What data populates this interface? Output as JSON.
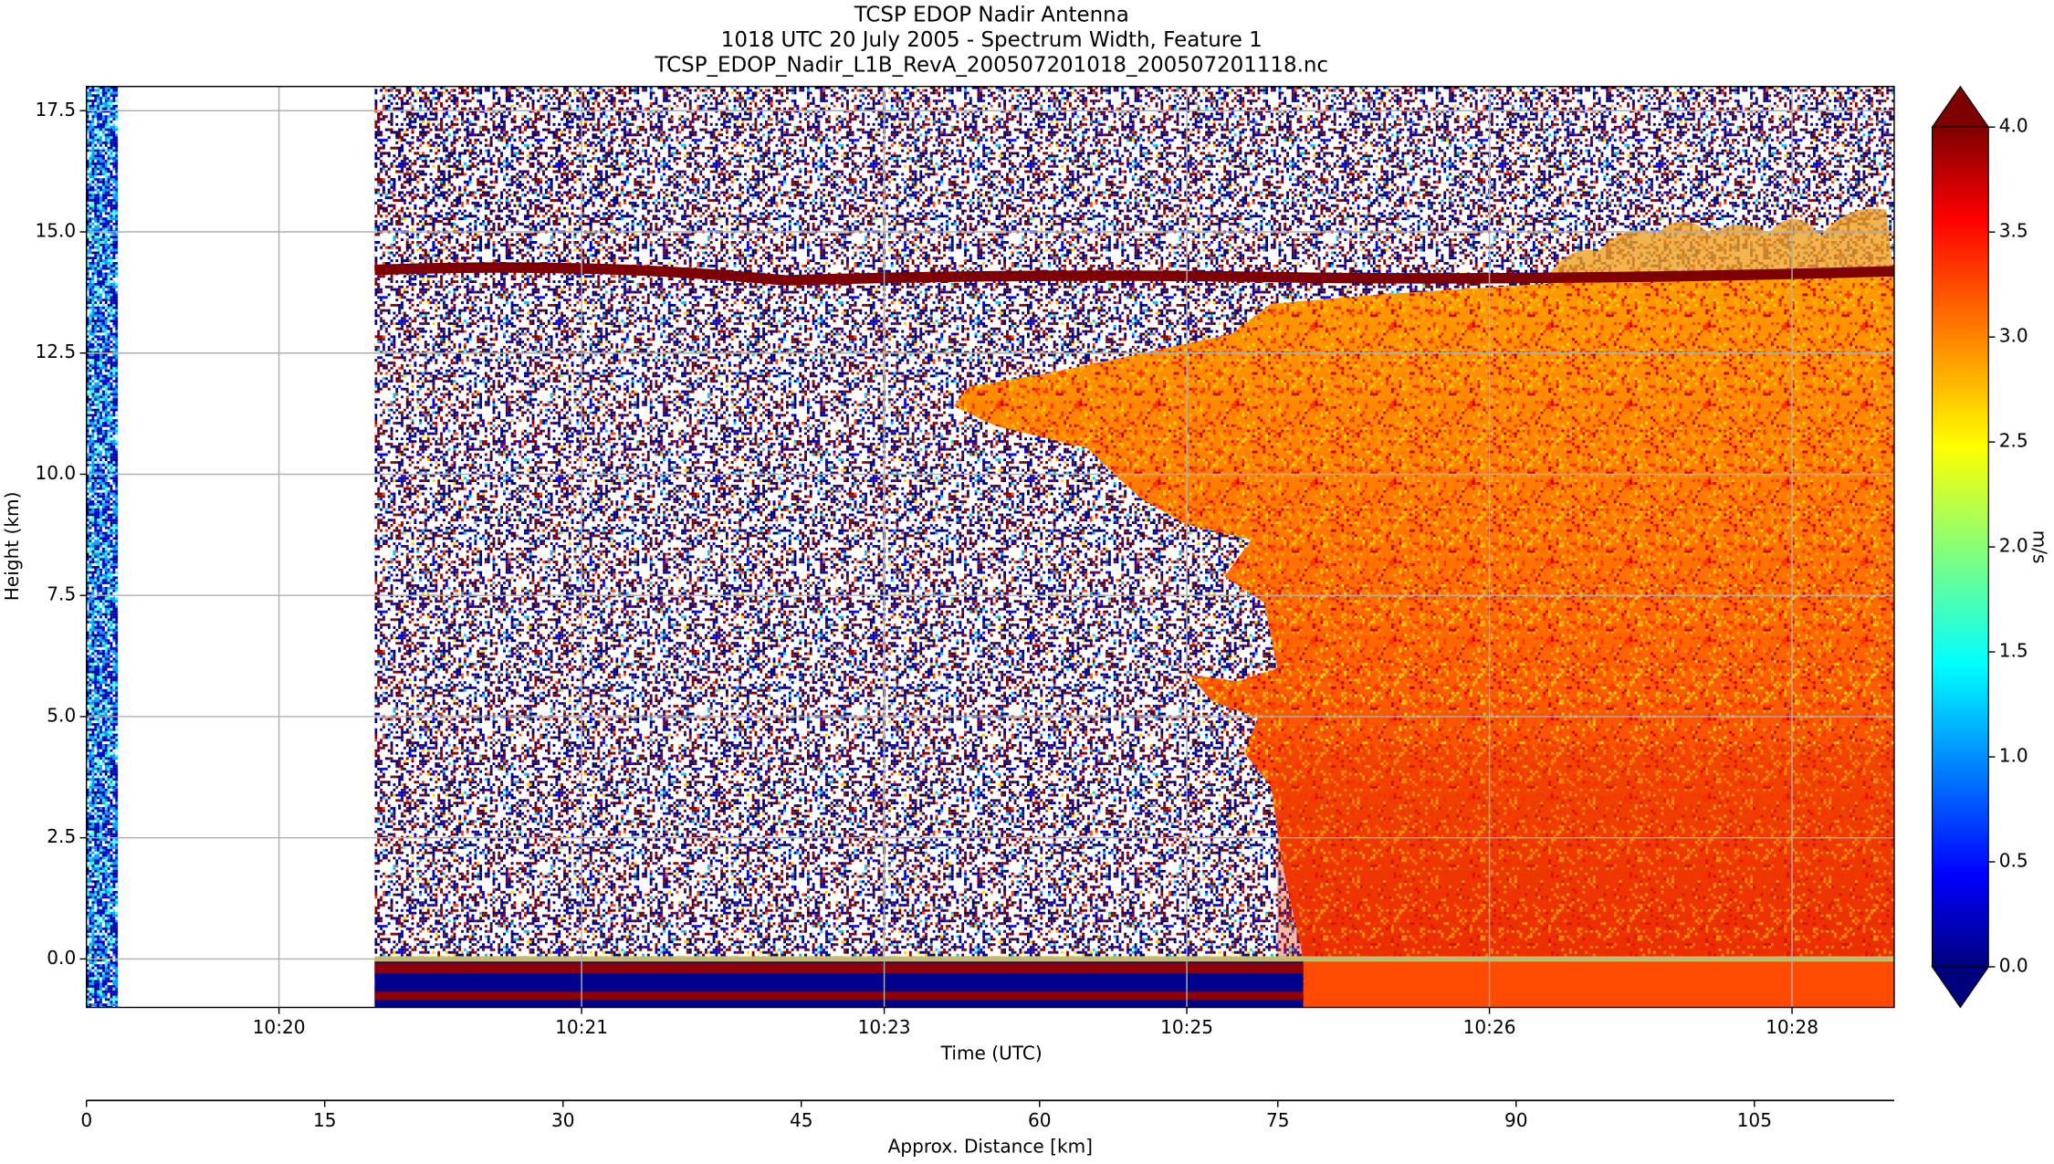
{
  "chart_data": {
    "type": "pcolormesh",
    "title": "TCSP EDOP Nadir Antenna",
    "subtitle": "1018 UTC 20 July 2005 - Spectrum Width, Feature 1",
    "filename": "TCSP_EDOP_Nadir_L1B_RevA_200507201018_200507201118.nc",
    "xlabel": "Time (UTC)",
    "ylabel": "Height (km)",
    "ylim": [
      -1,
      18
    ],
    "yticks": [
      {
        "value": 0,
        "label": "0.0"
      },
      {
        "value": 2.5,
        "label": "2.5"
      },
      {
        "value": 5,
        "label": "5.0"
      },
      {
        "value": 7.5,
        "label": "7.5"
      },
      {
        "value": 10,
        "label": "10.0"
      },
      {
        "value": 12.5,
        "label": "12.5"
      },
      {
        "value": 15,
        "label": "15.0"
      },
      {
        "value": 17.5,
        "label": "17.5"
      }
    ],
    "time_ticks": [
      "10:20",
      "10:21",
      "10:23",
      "10:25",
      "10:26",
      "10:28"
    ],
    "grid": true,
    "distance_axis": {
      "label": "Approx. Distance [km]",
      "xlim": [
        0,
        113.8
      ],
      "xticks": [
        0,
        15,
        30,
        45,
        60,
        75,
        90,
        105
      ]
    },
    "colorbar": {
      "label": "m/s",
      "cmap": "jet",
      "lim": [
        0,
        4
      ],
      "extend": "both",
      "ticks": [
        {
          "value": 0,
          "label": "0.0"
        },
        {
          "value": 0.5,
          "label": "0.5"
        },
        {
          "value": 1,
          "label": "1.0"
        },
        {
          "value": 1.5,
          "label": "1.5"
        },
        {
          "value": 2,
          "label": "2.0"
        },
        {
          "value": 2.5,
          "label": "2.5"
        },
        {
          "value": 3,
          "label": "3.0"
        },
        {
          "value": 3.5,
          "label": "3.5"
        },
        {
          "value": 4,
          "label": "4.0"
        }
      ]
    }
  }
}
